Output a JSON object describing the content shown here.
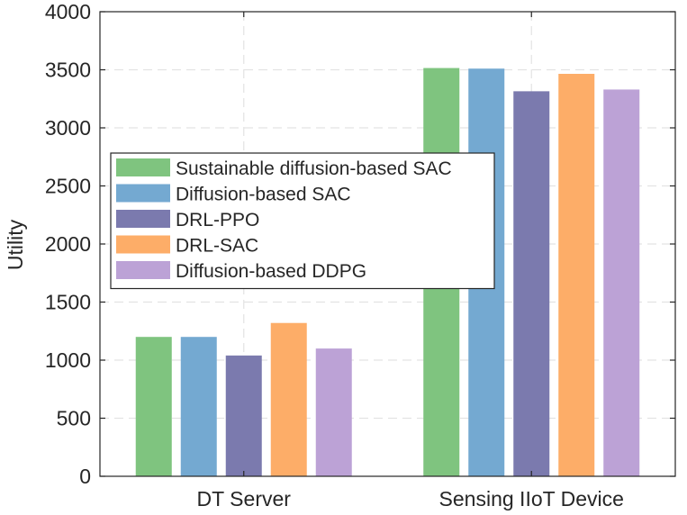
{
  "chart_data": {
    "type": "bar",
    "title": "",
    "xlabel": "",
    "ylabel": "Utility",
    "ylim": [
      0,
      4000
    ],
    "yticks": [
      0,
      500,
      1000,
      1500,
      2000,
      2500,
      3000,
      3500,
      4000
    ],
    "grid": true,
    "legend_position": "center-left",
    "categories": [
      "DT Server",
      "Sensing IIoT Device"
    ],
    "series": [
      {
        "name": "Sustainable diffusion-based SAC",
        "color": "#7fc47f",
        "values": [
          1200,
          3515
        ]
      },
      {
        "name": "Diffusion-based SAC",
        "color": "#74a9d1",
        "values": [
          1200,
          3510
        ]
      },
      {
        "name": "DRL-PPO",
        "color": "#7b7aae",
        "values": [
          1040,
          3315
        ]
      },
      {
        "name": "DRL-SAC",
        "color": "#fdad68",
        "values": [
          1320,
          3465
        ]
      },
      {
        "name": "Diffusion-based DDPG",
        "color": "#bca2d6",
        "values": [
          1100,
          3330
        ]
      }
    ]
  }
}
